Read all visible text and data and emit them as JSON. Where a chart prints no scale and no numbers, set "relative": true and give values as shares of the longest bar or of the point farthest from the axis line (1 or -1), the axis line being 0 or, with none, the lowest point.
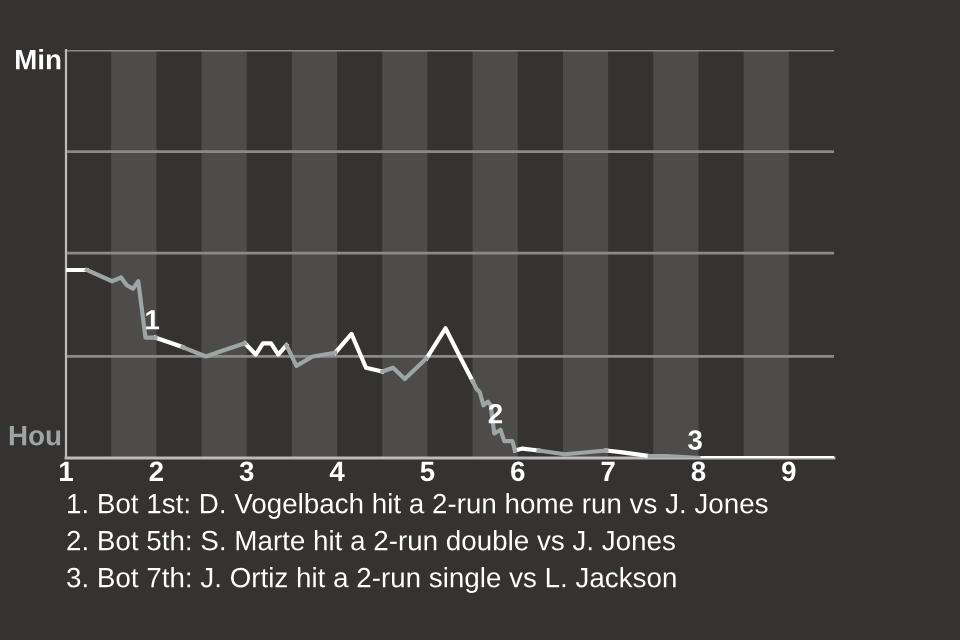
{
  "chart_data": {
    "type": "line",
    "relative": true,
    "x": [
      1,
      1.23,
      1.51,
      1.61,
      1.67,
      1.74,
      1.8,
      1.88,
      1.99,
      2.05,
      2.29,
      2.55,
      2.73,
      2.98,
      3.1,
      3.18,
      3.27,
      3.35,
      3.44,
      3.55,
      3.73,
      3.98,
      4.16,
      4.32,
      4.5,
      4.62,
      4.75,
      4.99,
      5.2,
      5.38,
      5.5,
      5.54,
      5.58,
      5.62,
      5.67,
      5.7,
      5.74,
      5.81,
      5.85,
      5.94,
      5.97,
      6.05,
      6.23,
      6.52,
      6.98,
      7.16,
      7.46,
      7.65,
      8,
      9.49
    ],
    "series": [
      {
        "color": "#ffffff",
        "values": [
          1,
          1,
          null,
          null,
          null,
          null,
          null,
          null,
          0.64,
          0.63,
          0.59,
          null,
          null,
          0.61,
          0.55,
          0.61,
          0.61,
          0.55,
          0.6,
          null,
          null,
          0.56,
          0.66,
          0.48,
          0.46,
          null,
          null,
          0.53,
          0.69,
          0.52,
          0.41,
          null,
          null,
          null,
          null,
          null,
          null,
          null,
          null,
          null,
          0.04,
          0.05,
          0.04,
          null,
          0.04,
          0.03,
          0.01,
          null,
          0,
          0
        ]
      },
      {
        "color": "#9ea5a5",
        "values": [
          null,
          1,
          0.94,
          0.96,
          0.92,
          0.9,
          0.94,
          0.64,
          0.64,
          null,
          0.59,
          0.54,
          0.57,
          0.61,
          null,
          null,
          null,
          null,
          0.6,
          0.49,
          0.54,
          0.56,
          null,
          null,
          0.46,
          0.48,
          0.42,
          0.53,
          null,
          null,
          0.41,
          0.37,
          0.35,
          0.28,
          0.3,
          0.28,
          0.13,
          0.15,
          0.09,
          0.09,
          0.04,
          null,
          0.04,
          0.02,
          0.04,
          null,
          0.01,
          0.01,
          0,
          null
        ]
      }
    ],
    "xlim": [
      1,
      9.5
    ],
    "xticks": [
      1,
      2,
      3,
      4,
      5,
      6,
      7,
      8,
      9
    ],
    "marker": "none",
    "line_style": "solid",
    "ref_lines": [
      {
        "axis": "y",
        "value": 0.54,
        "color": "#8a8a88"
      },
      {
        "axis": "y",
        "value": 1.09,
        "color": "#8a8a88"
      },
      {
        "axis": "y",
        "value": 1.63,
        "color": "#8a8a88"
      },
      {
        "axis": "y",
        "value": 2.17,
        "color": "#8a8a88"
      }
    ],
    "bands": [
      {
        "axis": "x",
        "from": 1.5,
        "to": 2,
        "color": "#4d4c4a"
      },
      {
        "axis": "x",
        "from": 2.5,
        "to": 3,
        "color": "#4d4c4a"
      },
      {
        "axis": "x",
        "from": 3.5,
        "to": 4,
        "color": "#4d4c4a"
      },
      {
        "axis": "x",
        "from": 4.5,
        "to": 5,
        "color": "#4d4c4a"
      },
      {
        "axis": "x",
        "from": 5.5,
        "to": 6,
        "color": "#4d4c4a"
      },
      {
        "axis": "x",
        "from": 6.5,
        "to": 7,
        "color": "#4d4c4a"
      },
      {
        "axis": "x",
        "from": 7.5,
        "to": 8,
        "color": "#4d4c4a"
      },
      {
        "axis": "x",
        "from": 8.5,
        "to": 9,
        "color": "#4d4c4a"
      }
    ],
    "annotations": [
      "Min",
      "Hou",
      {
        "text": "1",
        "x": 1.96,
        "y": 0.64
      },
      {
        "text": "2",
        "x": 5.76,
        "y": 0.14
      },
      {
        "text": "3",
        "x": 7.97,
        "y": 0
      },
      "1. Bot 1st: D. Vogelbach hit a 2-run home run vs J. Jones",
      "2. Bot 5th: S. Marte hit a 2-run double vs J. Jones",
      "3. Bot 7th: J. Ortiz hit a 2-run single vs L. Jackson"
    ]
  }
}
